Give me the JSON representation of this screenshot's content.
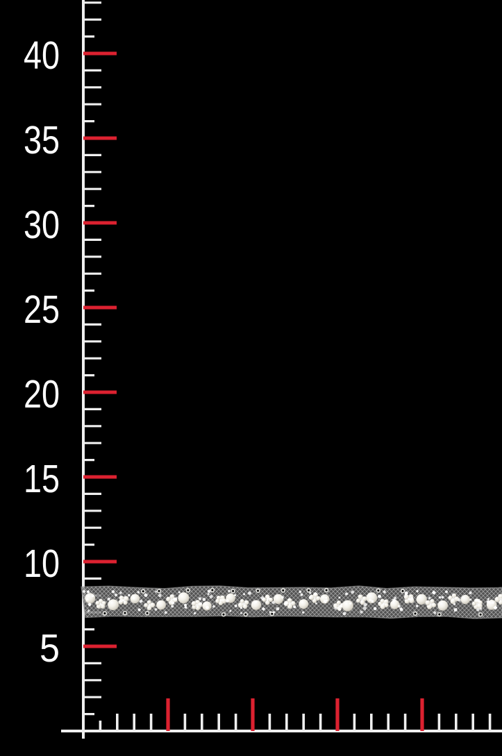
{
  "scene": {
    "type": "product-measurement-photo",
    "background_color": "#000000",
    "subject": "white pearl and seed-bead trim on sheer tulle ribbon laid across a black centimeter measuring board"
  },
  "scale": {
    "tick_color": "#efefef",
    "major_tick_color": "#dc2130",
    "label_color": "#ffffff",
    "vertical": {
      "labels": [
        "40",
        "35",
        "30",
        "25",
        "20",
        "15",
        "10",
        "5"
      ],
      "labeled_values": [
        40,
        35,
        30,
        25,
        20,
        15,
        10,
        5
      ],
      "min": 0,
      "max": 43,
      "major_every": 5
    },
    "horizontal": {
      "labels": [],
      "labeled_values": [],
      "min": 0,
      "max": 24,
      "major_every": 5,
      "major_tick_values": [
        5,
        10,
        15,
        20
      ]
    }
  },
  "trim": {
    "mesh_base_color": "#646464",
    "mesh_line_color": "#cdcdcd",
    "mesh_edge_color": "#9d9d9d",
    "pearl_color": "#f5f3ec",
    "pearl_rim_color": "#9f9b90",
    "seed_color": "#ffffff",
    "ring_color": "#dcdcd8",
    "ring_hole_color": "#060606"
  }
}
